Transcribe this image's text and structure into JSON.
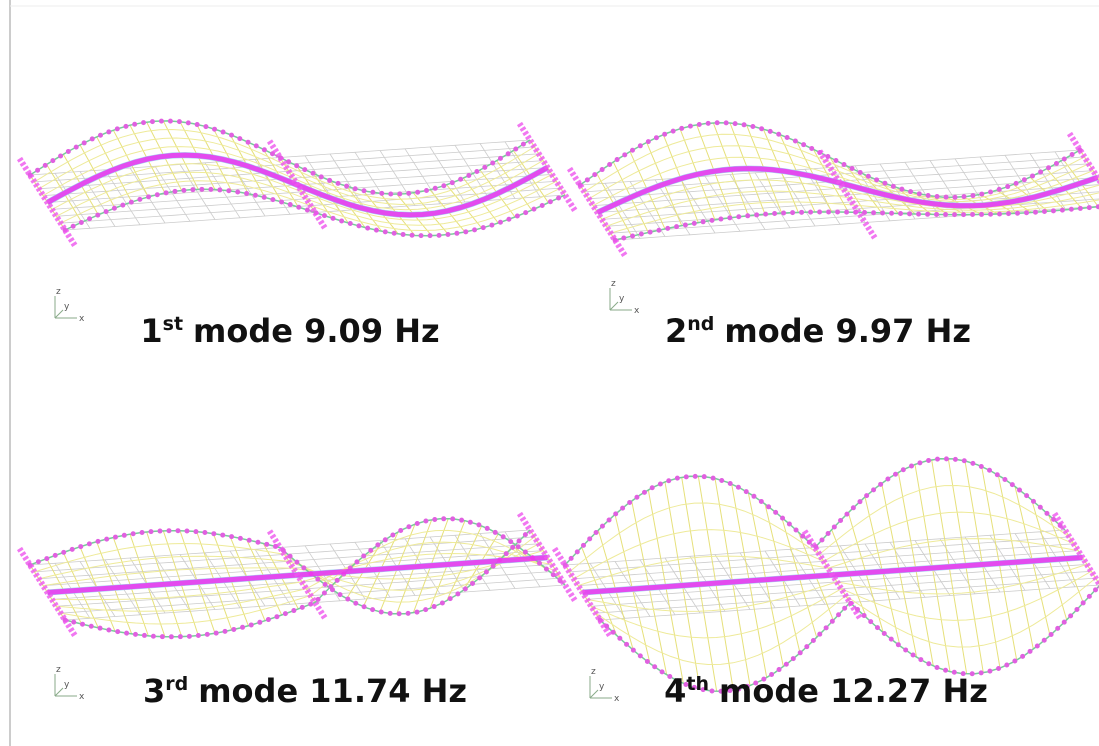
{
  "panels": [
    {
      "number": "1",
      "suffix": "st",
      "text": "mode 9.09 Hz"
    },
    {
      "number": "2",
      "suffix": "nd",
      "text": "mode 9.97 Hz"
    },
    {
      "number": "3",
      "suffix": "rd",
      "text": "mode 11.74 Hz"
    },
    {
      "number": "4",
      "suffix": "th",
      "text": "mode 12.27 Hz"
    }
  ],
  "triad_labels": {
    "z": "z",
    "y": "y",
    "x": "x"
  }
}
